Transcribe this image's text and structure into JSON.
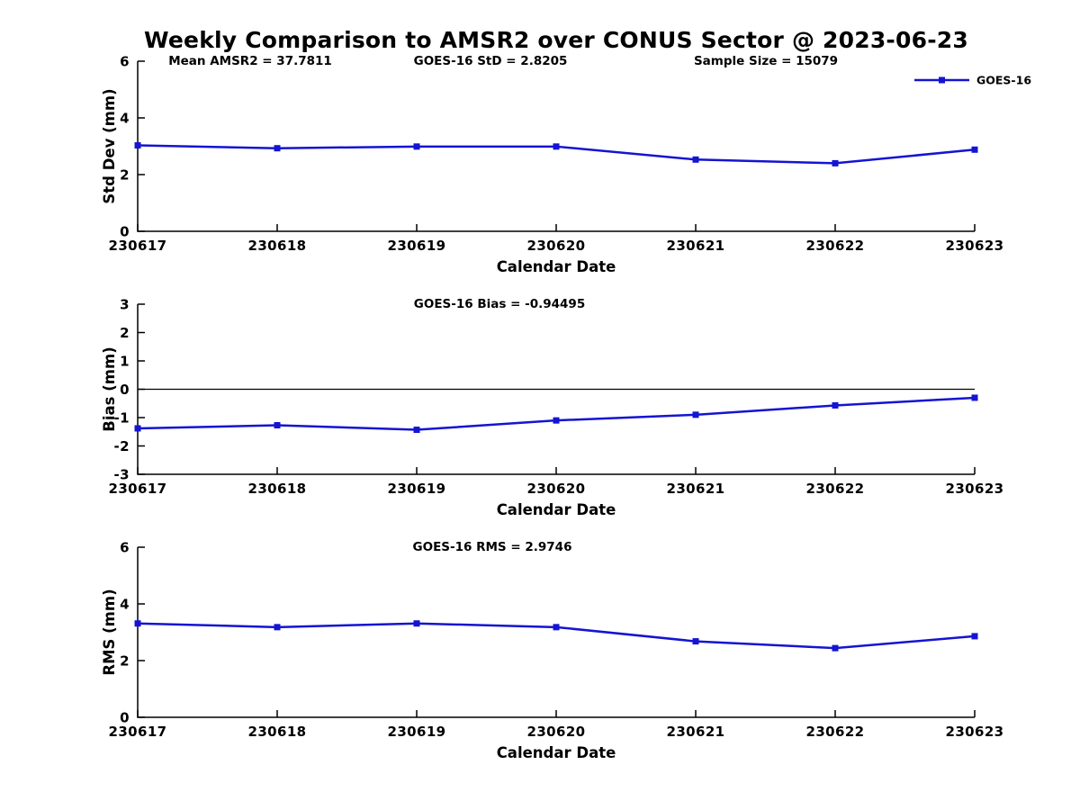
{
  "figure": {
    "title": "Weekly Comparison to AMSR2 over CONUS Sector @ 2023-06-23",
    "line_color": "#1414d2",
    "axis_color": "#000000",
    "legend_label": "GOES-16"
  },
  "chart_data": [
    {
      "type": "line",
      "name": "std-dev-panel",
      "annotations": [
        "Mean AMSR2 = 37.7811",
        "GOES-16 StD = 2.8205",
        "Sample Size = 15079"
      ],
      "categories": [
        "230617",
        "230618",
        "230619",
        "230620",
        "230621",
        "230622",
        "230623"
      ],
      "series": [
        {
          "name": "GOES-16",
          "values": [
            3.03,
            2.93,
            2.99,
            2.99,
            2.53,
            2.4,
            2.88
          ]
        }
      ],
      "xlabel": "Calendar Date",
      "ylabel": "Std Dev (mm)",
      "ylim": [
        0,
        6
      ],
      "yticks": [
        0,
        2,
        4,
        6
      ],
      "zero_line": false,
      "legend": true,
      "legend_position": "top-right",
      "grid": false
    },
    {
      "type": "line",
      "name": "bias-panel",
      "annotations": [
        "GOES-16 Bias  = -0.94495"
      ],
      "categories": [
        "230617",
        "230618",
        "230619",
        "230620",
        "230621",
        "230622",
        "230623"
      ],
      "series": [
        {
          "name": "GOES-16",
          "values": [
            -1.38,
            -1.27,
            -1.43,
            -1.1,
            -0.9,
            -0.57,
            -0.3
          ]
        }
      ],
      "xlabel": "Calendar Date",
      "ylabel": "Bias (mm)",
      "ylim": [
        -3,
        3
      ],
      "yticks": [
        -3,
        -2,
        -1,
        0,
        1,
        2,
        3
      ],
      "zero_line": true,
      "legend": false,
      "grid": false
    },
    {
      "type": "line",
      "name": "rms-panel",
      "annotations": [
        "GOES-16 RMS = 2.9746"
      ],
      "categories": [
        "230617",
        "230618",
        "230619",
        "230620",
        "230621",
        "230622",
        "230623"
      ],
      "series": [
        {
          "name": "GOES-16",
          "values": [
            3.31,
            3.18,
            3.31,
            3.18,
            2.68,
            2.44,
            2.86
          ]
        }
      ],
      "xlabel": "Calendar Date",
      "ylabel": "RMS (mm)",
      "ylim": [
        0,
        6
      ],
      "yticks": [
        0,
        2,
        4,
        6
      ],
      "zero_line": false,
      "legend": false,
      "grid": false
    }
  ]
}
